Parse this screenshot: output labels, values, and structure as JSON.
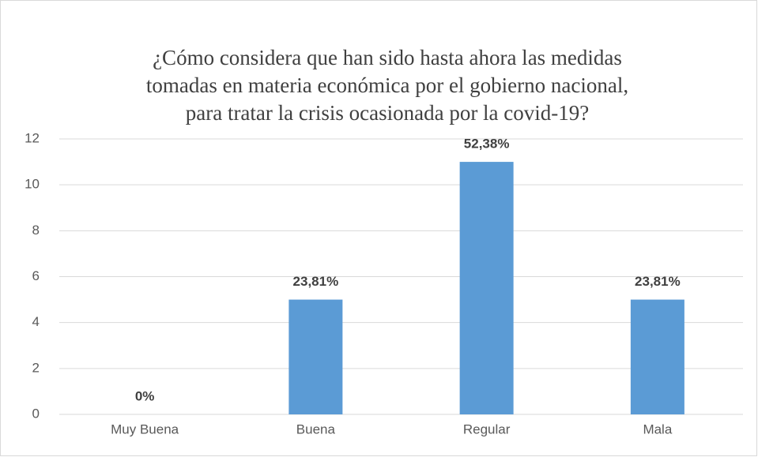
{
  "chart_data": {
    "type": "bar",
    "title": [
      "¿Cómo considera que han sido hasta ahora las medidas",
      "tomadas en materia económica por el gobierno nacional,",
      "para tratar la crisis ocasionada por la covid-19?"
    ],
    "categories": [
      "Muy Buena",
      "Buena",
      "Regular",
      "Mala"
    ],
    "values": [
      0,
      5,
      11,
      5
    ],
    "data_labels": [
      "0%",
      "23,81%",
      "52,38%",
      "23,81%"
    ],
    "color": "#5b9bd5",
    "ylim": [
      0,
      12
    ],
    "yticks": [
      0,
      2,
      4,
      6,
      8,
      10,
      12
    ],
    "grid": true
  }
}
